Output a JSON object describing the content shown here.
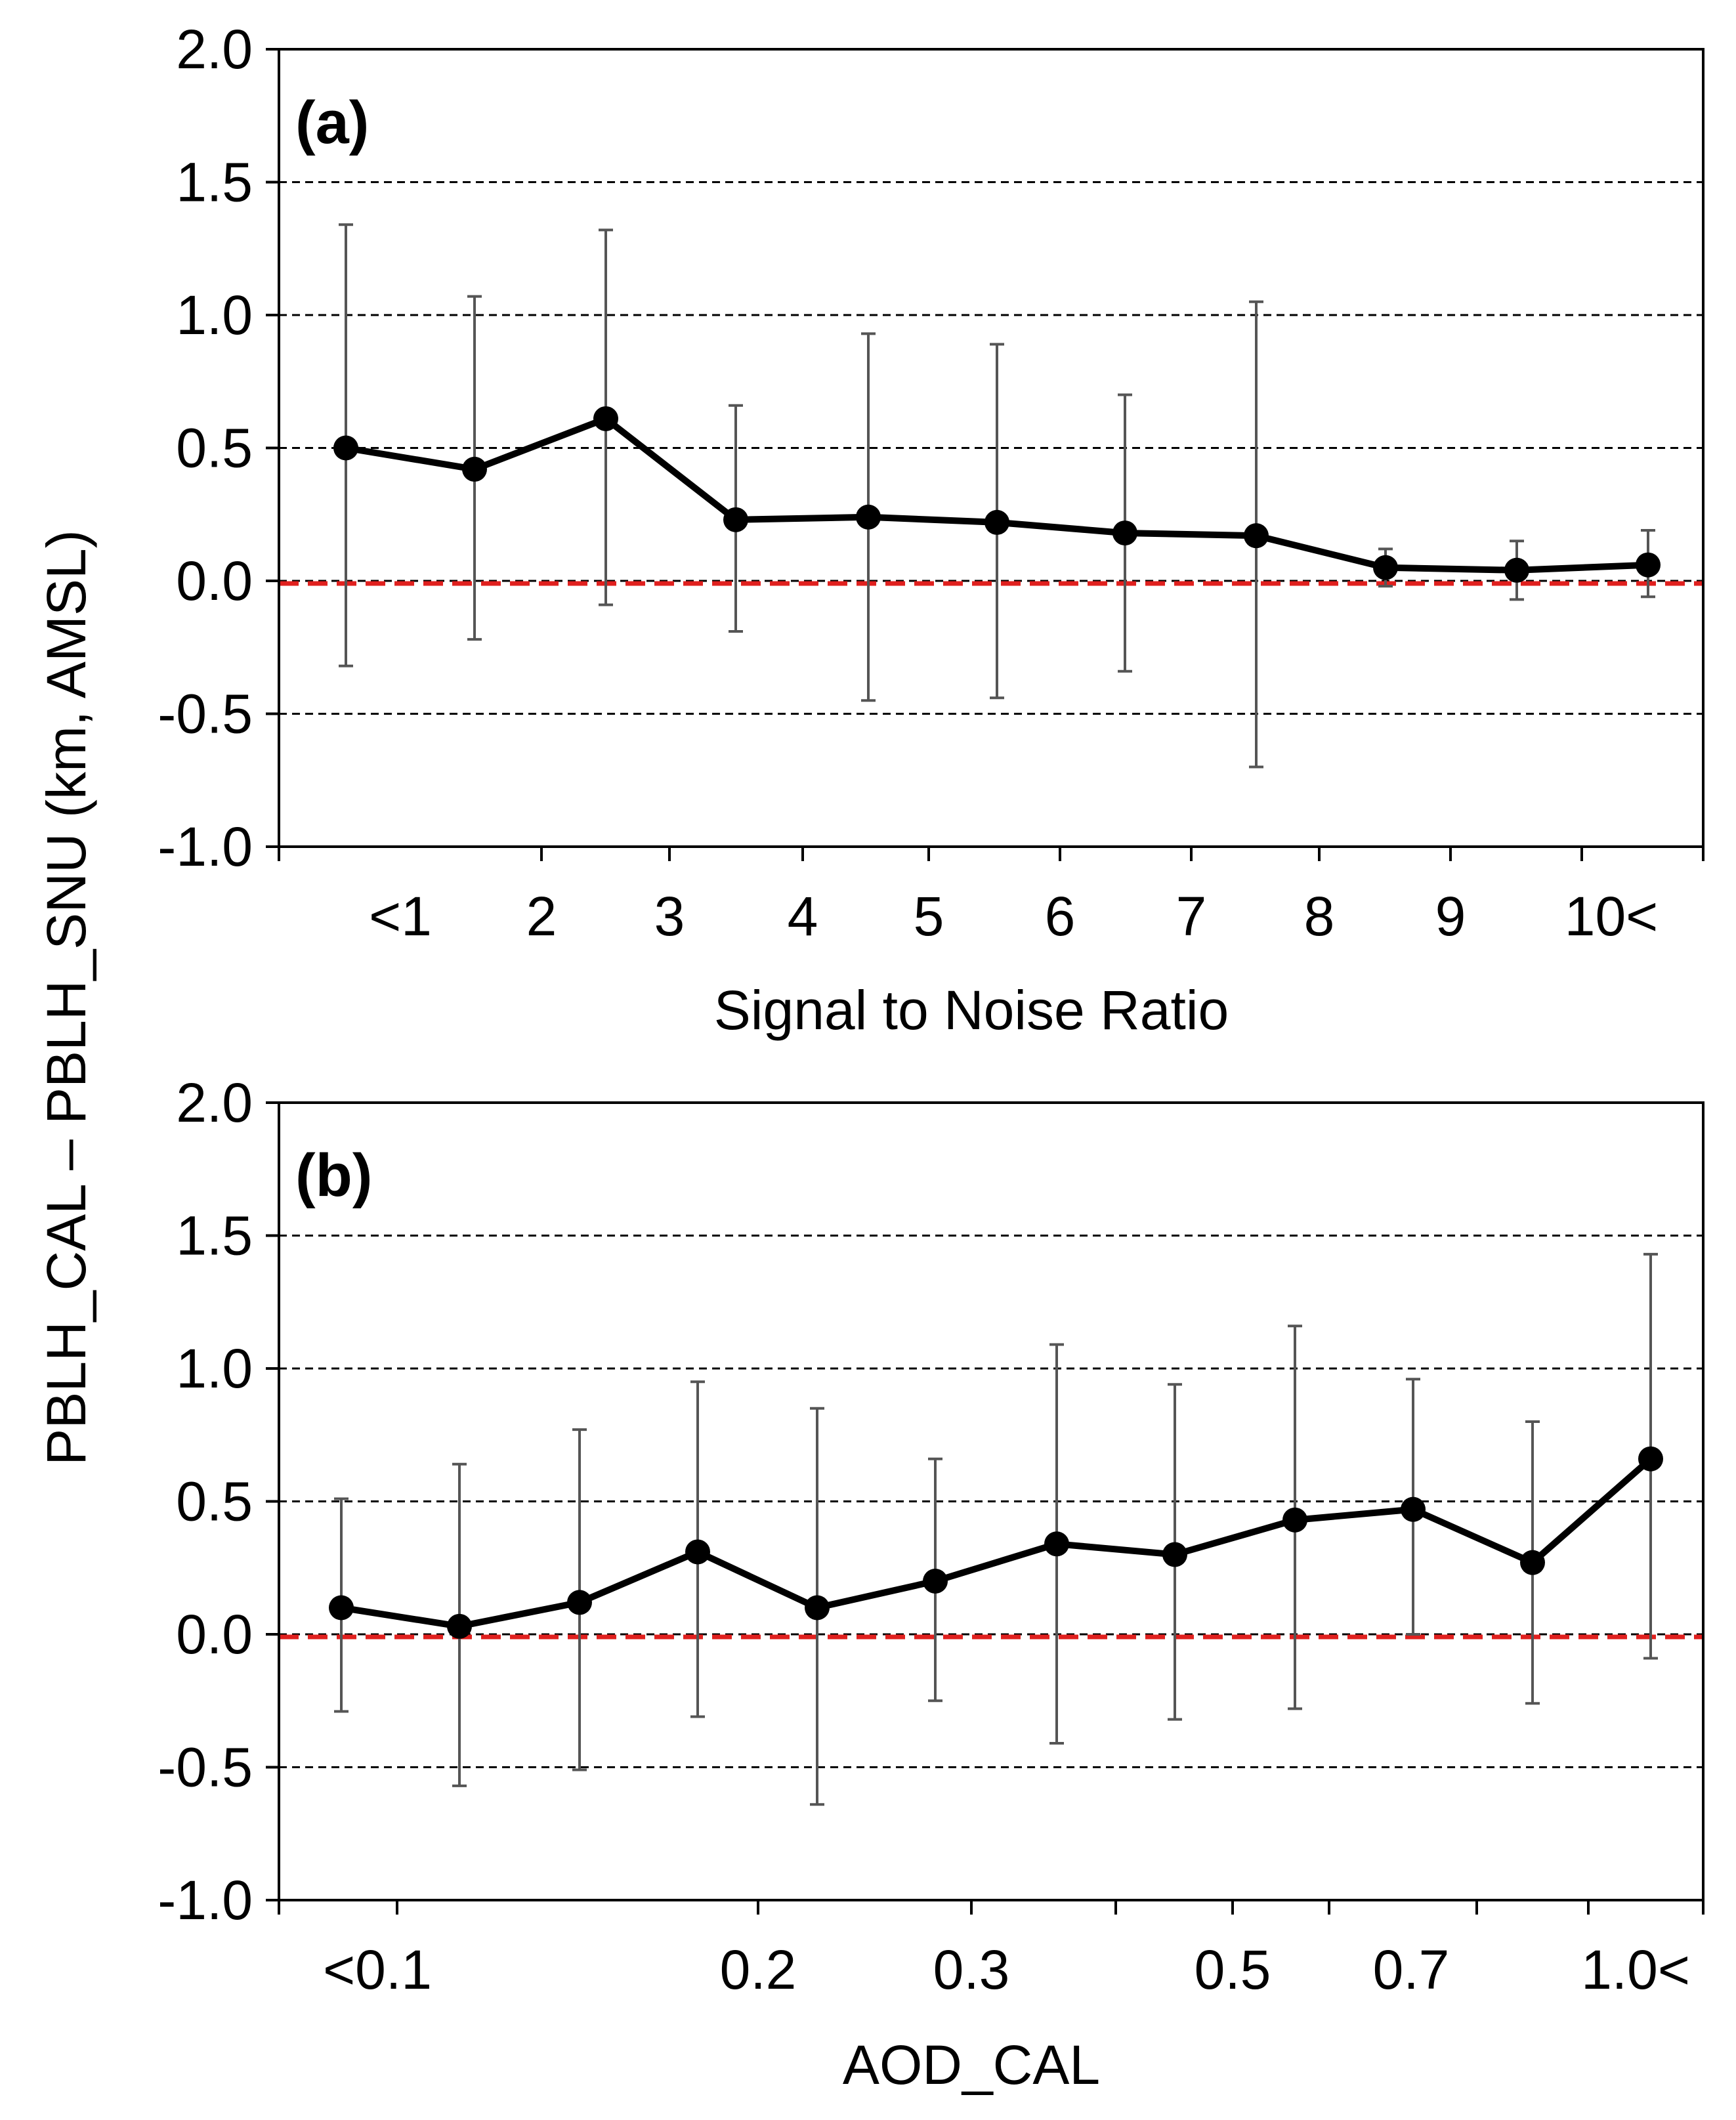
{
  "ylabel": "PBLH_CAL – PBLH_SNU (km, AMSL)",
  "colors": {
    "line": "#000000",
    "errorbar": "#555555",
    "zero_line": "#e0201e",
    "grid": "#000000"
  },
  "chart_data": [
    {
      "type": "line",
      "panel_label": "(a)",
      "xlabel": "Signal to Noise Ratio",
      "ylim": [
        -1.0,
        2.0
      ],
      "yticks": [
        "2.0",
        "1.5",
        "1.0",
        "0.5",
        "0.0",
        "-0.5",
        "-1.0"
      ],
      "ytick_values": [
        2.0,
        1.5,
        1.0,
        0.5,
        0.0,
        -0.5,
        -1.0
      ],
      "grid_y": [
        1.5,
        1.0,
        0.5,
        0.0,
        -0.5
      ],
      "reference_line": -0.01,
      "categories": [
        "<1",
        "2",
        "3",
        "4",
        "5",
        "6",
        "7",
        "8",
        "9",
        "10<"
      ],
      "points": [
        {
          "y": 0.5,
          "err_low": -0.32,
          "err_high": 1.34
        },
        {
          "y": 0.42,
          "err_low": -0.22,
          "err_high": 1.07
        },
        {
          "y": 0.61,
          "err_low": -0.09,
          "err_high": 1.32
        },
        {
          "y": 0.23,
          "err_low": -0.19,
          "err_high": 0.66
        },
        {
          "y": 0.24,
          "err_low": -0.45,
          "err_high": 0.93
        },
        {
          "y": 0.22,
          "err_low": -0.44,
          "err_high": 0.89
        },
        {
          "y": 0.18,
          "err_low": -0.34,
          "err_high": 0.7
        },
        {
          "y": 0.17,
          "err_low": -0.7,
          "err_high": 1.05
        },
        {
          "y": 0.05,
          "err_low": -0.02,
          "err_high": 0.12
        },
        {
          "y": 0.04,
          "err_low": -0.07,
          "err_high": 0.15
        },
        {
          "y": 0.06,
          "err_low": -0.06,
          "err_high": 0.19
        }
      ]
    },
    {
      "type": "line",
      "panel_label": "(b)",
      "xlabel": "AOD_CAL",
      "ylim": [
        -1.0,
        2.0
      ],
      "yticks": [
        "2.0",
        "1.5",
        "1.0",
        "0.5",
        "0.0",
        "-0.5",
        "-1.0"
      ],
      "ytick_values": [
        2.0,
        1.5,
        1.0,
        0.5,
        0.0,
        -0.5,
        -1.0
      ],
      "grid_y": [
        1.5,
        1.0,
        0.5,
        0.0,
        -0.5
      ],
      "reference_line": -0.01,
      "categories": [
        "<0.1",
        "0.2",
        "0.3",
        "0.5",
        "0.7",
        "1.0<"
      ],
      "points": [
        {
          "y": 0.1,
          "err_low": -0.29,
          "err_high": 0.51
        },
        {
          "y": 0.03,
          "err_low": -0.57,
          "err_high": 0.64
        },
        {
          "y": 0.12,
          "err_low": -0.51,
          "err_high": 0.77
        },
        {
          "y": 0.31,
          "err_low": -0.31,
          "err_high": 0.95
        },
        {
          "y": 0.1,
          "err_low": -0.64,
          "err_high": 0.85
        },
        {
          "y": 0.2,
          "err_low": -0.25,
          "err_high": 0.66
        },
        {
          "y": 0.34,
          "err_low": -0.41,
          "err_high": 1.09
        },
        {
          "y": 0.3,
          "err_low": -0.32,
          "err_high": 0.94
        },
        {
          "y": 0.43,
          "err_low": -0.28,
          "err_high": 1.16
        },
        {
          "y": 0.47,
          "err_low": 0.0,
          "err_high": 0.96
        },
        {
          "y": 0.27,
          "err_low": -0.26,
          "err_high": 0.8
        },
        {
          "y": 0.66,
          "err_low": -0.09,
          "err_high": 1.43
        }
      ]
    }
  ]
}
